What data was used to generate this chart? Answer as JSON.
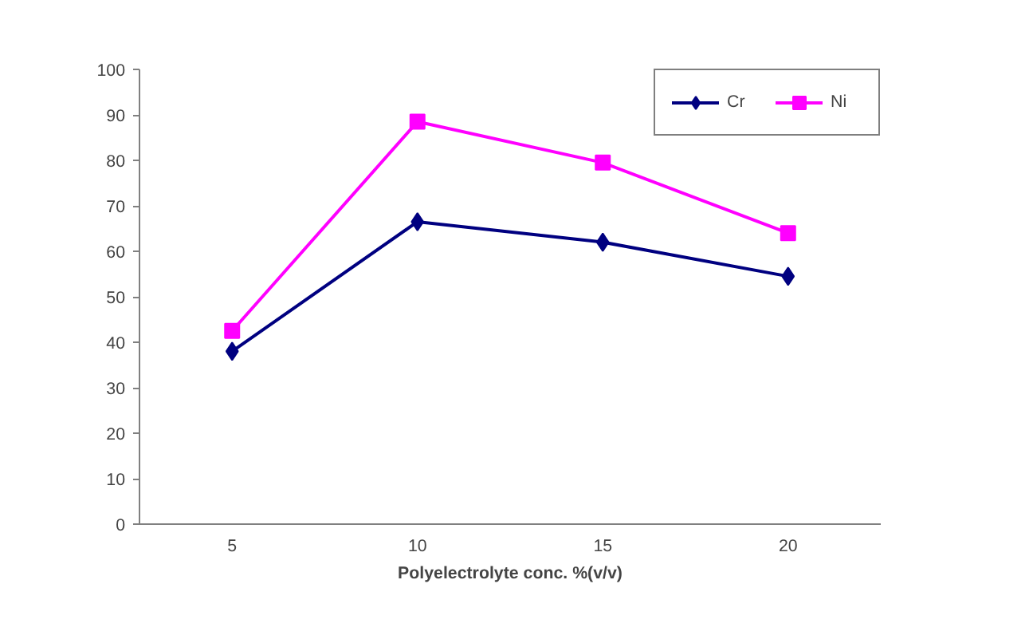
{
  "chart_data": {
    "type": "line",
    "xlabel": "Polyelectrolyte conc. %(v/v)",
    "categories": [
      "5",
      "10",
      "15",
      "20"
    ],
    "series": [
      {
        "name": "Cr",
        "color": "#000080",
        "marker": "diamond",
        "values": [
          38,
          66.5,
          62,
          54.5
        ]
      },
      {
        "name": "Ni",
        "color": "#ff00ff",
        "marker": "square",
        "values": [
          42.5,
          88.5,
          79.5,
          64
        ]
      }
    ],
    "ylim": [
      0,
      100
    ],
    "yticks": [
      0,
      10,
      20,
      30,
      40,
      50,
      60,
      70,
      80,
      90,
      100
    ],
    "grid": false,
    "legend": "top right"
  }
}
